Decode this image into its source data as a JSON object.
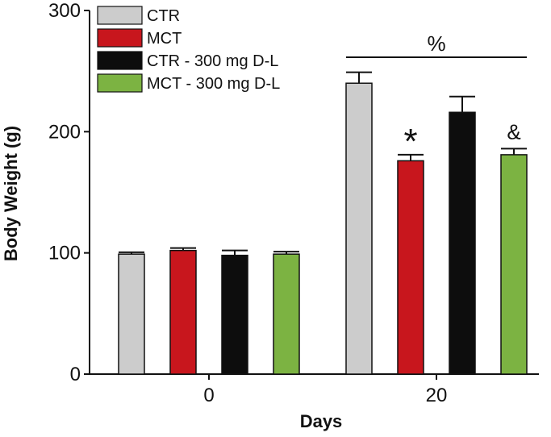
{
  "chart_data": {
    "type": "bar",
    "title": "",
    "xlabel": "Days",
    "ylabel": "Body Weight (g)",
    "ylim": [
      0,
      300
    ],
    "yticks": [
      0,
      100,
      200,
      300
    ],
    "categories": [
      "0",
      "20"
    ],
    "series": [
      {
        "name": "CTR",
        "color": "#cccccc",
        "values": [
          99,
          240
        ],
        "errors": [
          1.5,
          9
        ]
      },
      {
        "name": "MCT",
        "color": "#c8161d",
        "values": [
          102,
          176
        ],
        "errors": [
          2,
          5
        ]
      },
      {
        "name": "CTR - 300 mg D-L",
        "color": "#0d0d0d",
        "values": [
          98,
          216
        ],
        "errors": [
          4,
          13
        ]
      },
      {
        "name": "MCT - 300 mg D-L",
        "color": "#7cb342",
        "values": [
          99,
          181
        ],
        "errors": [
          2,
          5
        ]
      }
    ],
    "annotations": [
      {
        "text": "%",
        "category": "20",
        "note": "line spanning all day-20 bars"
      },
      {
        "text": "*",
        "category": "20",
        "series": "MCT"
      },
      {
        "text": "&",
        "category": "20",
        "series": "MCT - 300 mg D-L"
      }
    ],
    "legend": "top-left"
  }
}
